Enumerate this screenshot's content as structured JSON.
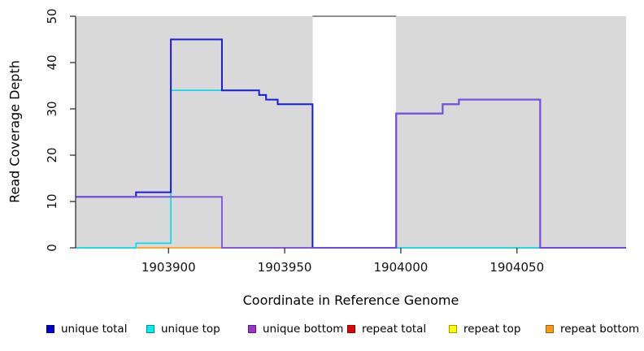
{
  "chart_data": {
    "type": "line",
    "subtype": "step-coverage-plot",
    "title": "",
    "xlabel": "Coordinate in Reference Genome",
    "ylabel": "Read Coverage Depth",
    "xlim": [
      1903860,
      1904097
    ],
    "ylim": [
      0,
      50
    ],
    "xticks": [
      1903900,
      1903950,
      1904000,
      1904050
    ],
    "yticks": [
      0,
      10,
      20,
      30,
      40,
      50
    ],
    "grid": false,
    "legend_position": "bottom",
    "colors": {
      "shaded_band": "#d9d9d9",
      "axis": "#333333",
      "tick_label": "#111111",
      "clip_line": "#8e8e8e"
    },
    "shaded_bands": [
      {
        "from": 1903860,
        "to": 1903962
      },
      {
        "from": 1903998,
        "to": 1904097
      }
    ],
    "clip_line": {
      "from": 1903962,
      "to": 1903998,
      "value": 50
    },
    "series": [
      {
        "name": "unique top",
        "color": "#00dcee",
        "width": 1.6,
        "steps": [
          [
            1903860,
            0
          ],
          [
            1903886,
            1
          ],
          [
            1903901,
            34
          ],
          [
            1903923,
            34
          ],
          [
            1903939,
            33
          ],
          [
            1903942,
            32
          ],
          [
            1903947,
            31
          ],
          [
            1903962,
            0
          ]
        ]
      },
      {
        "name": "unique total",
        "color": "#1b1bdc",
        "width": 2,
        "steps": [
          [
            1903860,
            11
          ],
          [
            1903886,
            12
          ],
          [
            1903901,
            45
          ],
          [
            1903923,
            34
          ],
          [
            1903939,
            33
          ],
          [
            1903942,
            32
          ],
          [
            1903947,
            31
          ],
          [
            1903962,
            0
          ],
          [
            1903998,
            29
          ],
          [
            1904018,
            31
          ],
          [
            1904025,
            32
          ],
          [
            1904060,
            0
          ]
        ]
      },
      {
        "name": "unique bottom",
        "color": "#7a4fe0",
        "width": 1.8,
        "steps": [
          [
            1903860,
            11
          ],
          [
            1903923,
            0
          ],
          [
            1903998,
            29
          ],
          [
            1904018,
            31
          ],
          [
            1904025,
            32
          ],
          [
            1904060,
            0
          ]
        ]
      }
    ],
    "baseline_segments": [
      {
        "from": 1903860,
        "to": 1903886,
        "value": 0,
        "color": "#79c779"
      },
      {
        "from": 1903886,
        "to": 1903923,
        "value": 0,
        "color": "#ff9f1a"
      },
      {
        "from": 1903923,
        "to": 1903962,
        "value": 0,
        "color": "#cc5f81"
      },
      {
        "from": 1903998,
        "to": 1904060,
        "value": 0,
        "color": "#79c779"
      }
    ],
    "legend": [
      {
        "label": "unique total",
        "color": "#0000cd"
      },
      {
        "label": "unique top",
        "color": "#00eeee"
      },
      {
        "label": "unique bottom",
        "color": "#9a32cd"
      },
      {
        "label": "repeat total",
        "color": "#e60000"
      },
      {
        "label": "repeat top",
        "color": "#ffff00"
      },
      {
        "label": "repeat bottom",
        "color": "#ff9912"
      }
    ]
  }
}
